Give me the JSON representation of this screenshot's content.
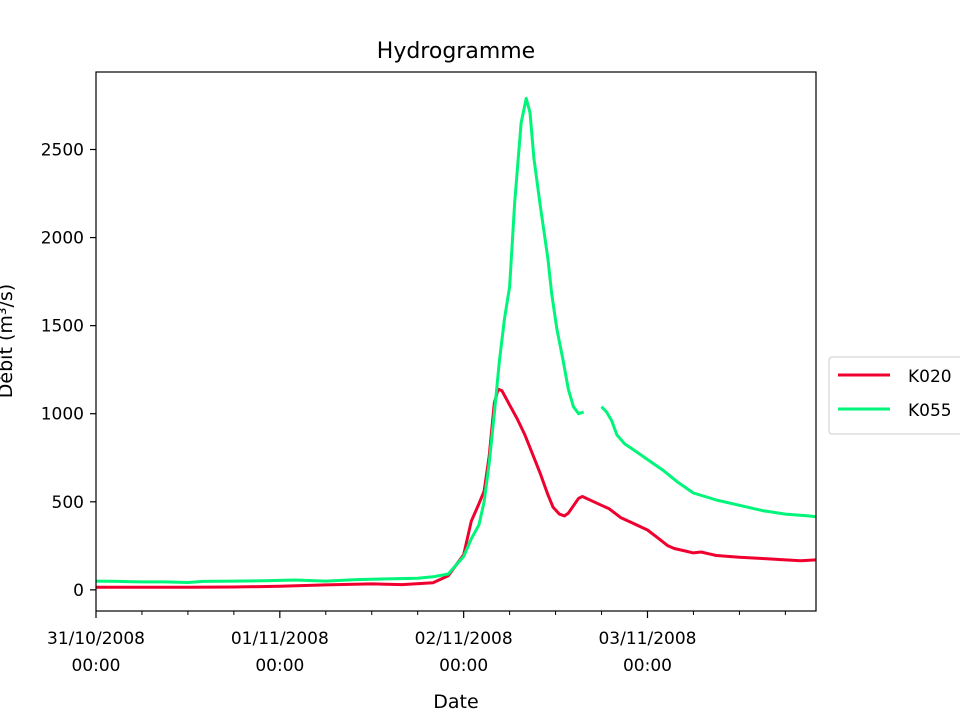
{
  "chart_data": {
    "type": "line",
    "title": "Hydrogramme",
    "xlabel": "Date",
    "ylabel": "Débit (m³/s)",
    "x_ticks": [
      {
        "date": "31/10/2008",
        "time": "00:00"
      },
      {
        "date": "01/11/2008",
        "time": "00:00"
      },
      {
        "date": "02/11/2008",
        "time": "00:00"
      },
      {
        "date": "03/11/2008",
        "time": "00:00"
      }
    ],
    "y_ticks": [
      0,
      500,
      1000,
      1500,
      2000,
      2500
    ],
    "xlim": [
      "31/10/2008 00:00",
      "03/11/2008 22:00"
    ],
    "ylim": [
      -120,
      2940
    ],
    "grid": false,
    "legend_position": "right, outside",
    "series": [
      {
        "name": "K020",
        "color": "#f0002e",
        "points": [
          [
            "31/10/2008 00:00",
            15
          ],
          [
            "31/10/2008 06:00",
            15
          ],
          [
            "31/10/2008 12:00",
            15
          ],
          [
            "31/10/2008 18:00",
            16
          ],
          [
            "01/11/2008 00:00",
            20
          ],
          [
            "01/11/2008 06:00",
            28
          ],
          [
            "01/11/2008 12:00",
            34
          ],
          [
            "01/11/2008 16:00",
            30
          ],
          [
            "01/11/2008 20:00",
            40
          ],
          [
            "01/11/2008 22:00",
            80
          ],
          [
            "02/11/2008 00:00",
            200
          ],
          [
            "02/11/2008 01:00",
            390
          ],
          [
            "02/11/2008 02:00",
            490
          ],
          [
            "02/11/2008 02:40",
            560
          ],
          [
            "02/11/2008 03:20",
            760
          ],
          [
            "02/11/2008 04:00",
            1060
          ],
          [
            "02/11/2008 04:30",
            1140
          ],
          [
            "02/11/2008 05:00",
            1130
          ],
          [
            "02/11/2008 06:00",
            1050
          ],
          [
            "02/11/2008 07:00",
            970
          ],
          [
            "02/11/2008 08:00",
            880
          ],
          [
            "02/11/2008 09:00",
            770
          ],
          [
            "02/11/2008 10:00",
            660
          ],
          [
            "02/11/2008 11:00",
            540
          ],
          [
            "02/11/2008 11:40",
            470
          ],
          [
            "02/11/2008 12:30",
            430
          ],
          [
            "02/11/2008 13:10",
            420
          ],
          [
            "02/11/2008 13:40",
            435
          ],
          [
            "02/11/2008 15:00",
            520
          ],
          [
            "02/11/2008 15:30",
            530
          ],
          [
            "02/11/2008 17:00",
            500
          ],
          [
            "02/11/2008 18:00",
            480
          ],
          [
            "02/11/2008 19:00",
            460
          ],
          [
            "02/11/2008 20:30",
            410
          ],
          [
            "02/11/2008 22:00",
            380
          ],
          [
            "03/11/2008 00:00",
            340
          ],
          [
            "03/11/2008 01:30",
            290
          ],
          [
            "03/11/2008 02:40",
            250
          ],
          [
            "03/11/2008 03:30",
            235
          ],
          [
            "03/11/2008 05:00",
            220
          ],
          [
            "03/11/2008 06:00",
            210
          ],
          [
            "03/11/2008 07:00",
            215
          ],
          [
            "03/11/2008 08:00",
            205
          ],
          [
            "03/11/2008 09:00",
            195
          ],
          [
            "03/11/2008 12:00",
            185
          ],
          [
            "03/11/2008 15:00",
            178
          ],
          [
            "03/11/2008 18:00",
            170
          ],
          [
            "03/11/2008 20:00",
            165
          ],
          [
            "03/11/2008 22:00",
            170
          ]
        ]
      },
      {
        "name": "K055",
        "color": "#00f57a",
        "points": [
          [
            "31/10/2008 00:00",
            50
          ],
          [
            "31/10/2008 03:00",
            48
          ],
          [
            "31/10/2008 06:00",
            45
          ],
          [
            "31/10/2008 09:00",
            45
          ],
          [
            "31/10/2008 12:00",
            42
          ],
          [
            "31/10/2008 14:00",
            48
          ],
          [
            "31/10/2008 18:00",
            50
          ],
          [
            "31/10/2008 22:00",
            52
          ],
          [
            "01/11/2008 02:00",
            56
          ],
          [
            "01/11/2008 06:00",
            50
          ],
          [
            "01/11/2008 10:00",
            58
          ],
          [
            "01/11/2008 14:00",
            62
          ],
          [
            "01/11/2008 18:00",
            66
          ],
          [
            "01/11/2008 20:00",
            74
          ],
          [
            "01/11/2008 22:00",
            90
          ],
          [
            "02/11/2008 00:00",
            190
          ],
          [
            "02/11/2008 01:00",
            290
          ],
          [
            "02/11/2008 02:00",
            370
          ],
          [
            "02/11/2008 02:40",
            500
          ],
          [
            "02/11/2008 03:20",
            720
          ],
          [
            "02/11/2008 04:00",
            1000
          ],
          [
            "02/11/2008 04:40",
            1300
          ],
          [
            "02/11/2008 05:20",
            1540
          ],
          [
            "02/11/2008 06:00",
            1720
          ],
          [
            "02/11/2008 06:40",
            2200
          ],
          [
            "02/11/2008 07:30",
            2650
          ],
          [
            "02/11/2008 08:10",
            2790
          ],
          [
            "02/11/2008 08:40",
            2710
          ],
          [
            "02/11/2008 09:10",
            2450
          ],
          [
            "02/11/2008 10:00",
            2180
          ],
          [
            "02/11/2008 11:00",
            1880
          ],
          [
            "02/11/2008 11:30",
            1680
          ],
          [
            "02/11/2008 12:10",
            1480
          ],
          [
            "02/11/2008 13:00",
            1300
          ],
          [
            "02/11/2008 13:40",
            1140
          ],
          [
            "02/11/2008 14:20",
            1040
          ],
          [
            "02/11/2008 15:00",
            1000
          ],
          [
            "02/11/2008 15:40",
            1010
          ],
          null,
          [
            "02/11/2008 18:00",
            1040
          ],
          [
            "02/11/2008 18:40",
            1010
          ],
          [
            "02/11/2008 19:20",
            960
          ],
          [
            "02/11/2008 20:00",
            880
          ],
          [
            "02/11/2008 21:00",
            830
          ],
          [
            "02/11/2008 22:00",
            800
          ],
          [
            "03/11/2008 00:00",
            740
          ],
          [
            "03/11/2008 02:00",
            680
          ],
          [
            "03/11/2008 04:00",
            610
          ],
          [
            "03/11/2008 06:00",
            550
          ],
          [
            "03/11/2008 09:00",
            510
          ],
          [
            "03/11/2008 12:00",
            480
          ],
          [
            "03/11/2008 15:00",
            450
          ],
          [
            "03/11/2008 18:00",
            430
          ],
          [
            "03/11/2008 21:00",
            420
          ],
          [
            "03/11/2008 22:00",
            415
          ]
        ]
      }
    ]
  }
}
